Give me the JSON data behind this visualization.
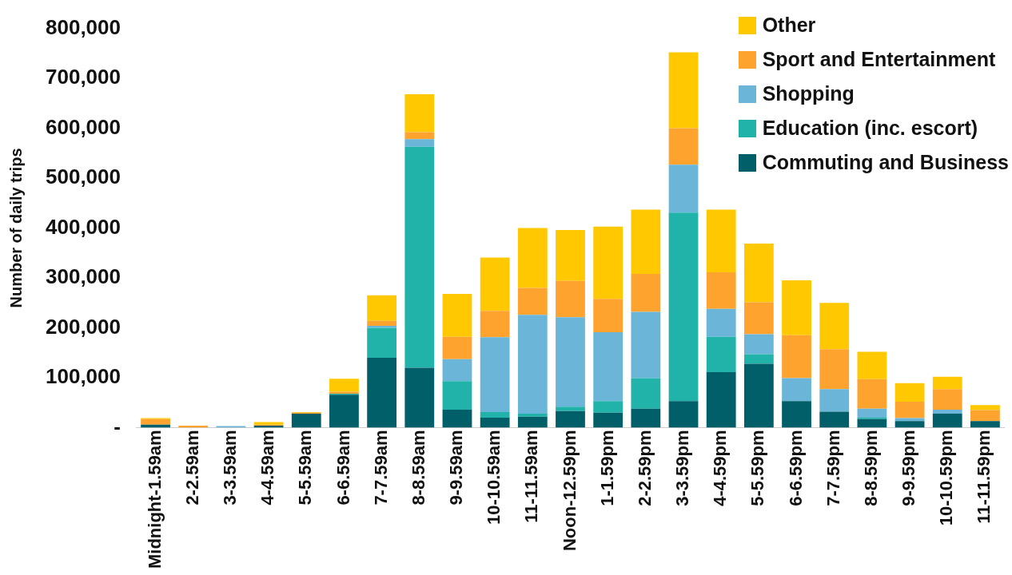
{
  "chart_data": {
    "type": "bar",
    "stacked": true,
    "ylabel": "Number of daily trips",
    "categories": [
      "Midnight-1.59am",
      "2-2.59am",
      "3-3.59am",
      "4-4.59am",
      "5-5.59am",
      "6-6.59am",
      "7-7.59am",
      "8-8.59am",
      "9-9.59am",
      "10-10.59am",
      "11-11.59am",
      "Noon-12.59pm",
      "1-1.59pm",
      "2-2.59pm",
      "3-3.59pm",
      "4-4.59pm",
      "5-5.59pm",
      "6-6.59pm",
      "7-7.59pm",
      "8-8.59pm",
      "9-9.59pm",
      "10-10.59pm",
      "11-11.59pm"
    ],
    "series": [
      {
        "name": "Commuting and Business",
        "color": "#005f69",
        "values": [
          6000,
          0,
          0,
          4000,
          28000,
          66000,
          140000,
          120000,
          36000,
          20000,
          22000,
          33000,
          30000,
          38000,
          53000,
          111000,
          128000,
          53000,
          32000,
          17000,
          13000,
          28000,
          13000
        ]
      },
      {
        "name": "Education (inc. escort)",
        "color": "#21b3aa",
        "values": [
          0,
          0,
          0,
          0,
          0,
          2000,
          60000,
          443000,
          57000,
          11000,
          6000,
          9000,
          23000,
          61000,
          378000,
          71000,
          19000,
          0,
          0,
          3000,
          0,
          0,
          0
        ]
      },
      {
        "name": "Shopping",
        "color": "#6bb6d8",
        "values": [
          0,
          0,
          3000,
          0,
          0,
          0,
          4000,
          15000,
          44000,
          150000,
          198000,
          179000,
          138000,
          133000,
          96000,
          56000,
          40000,
          46000,
          45000,
          18000,
          6000,
          8000,
          0
        ]
      },
      {
        "name": "Sport and Entertainment",
        "color": "#ffa32f",
        "values": [
          11000,
          4000,
          0,
          2000,
          2000,
          4000,
          10000,
          14000,
          45000,
          53000,
          54000,
          73000,
          67000,
          76000,
          73000,
          73000,
          64000,
          86000,
          80000,
          59000,
          33000,
          41000,
          22000
        ]
      },
      {
        "name": "Other",
        "color": "#ffc800",
        "values": [
          2000,
          0,
          0,
          5000,
          1000,
          26000,
          51000,
          76000,
          86000,
          107000,
          120000,
          102000,
          145000,
          129000,
          152000,
          126000,
          118000,
          110000,
          93000,
          55000,
          37000,
          25000,
          10000
        ]
      }
    ],
    "ylim": [
      0,
      800000
    ],
    "yticks": [
      {
        "value": 0,
        "label": "-"
      },
      {
        "value": 100000,
        "label": "100,000"
      },
      {
        "value": 200000,
        "label": "200,000"
      },
      {
        "value": 300000,
        "label": "300,000"
      },
      {
        "value": 400000,
        "label": "400,000"
      },
      {
        "value": 500000,
        "label": "500,000"
      },
      {
        "value": 600000,
        "label": "600,000"
      },
      {
        "value": 700000,
        "label": "700,000"
      },
      {
        "value": 800000,
        "label": "800,000"
      }
    ],
    "grid": false,
    "legend": "top right"
  }
}
